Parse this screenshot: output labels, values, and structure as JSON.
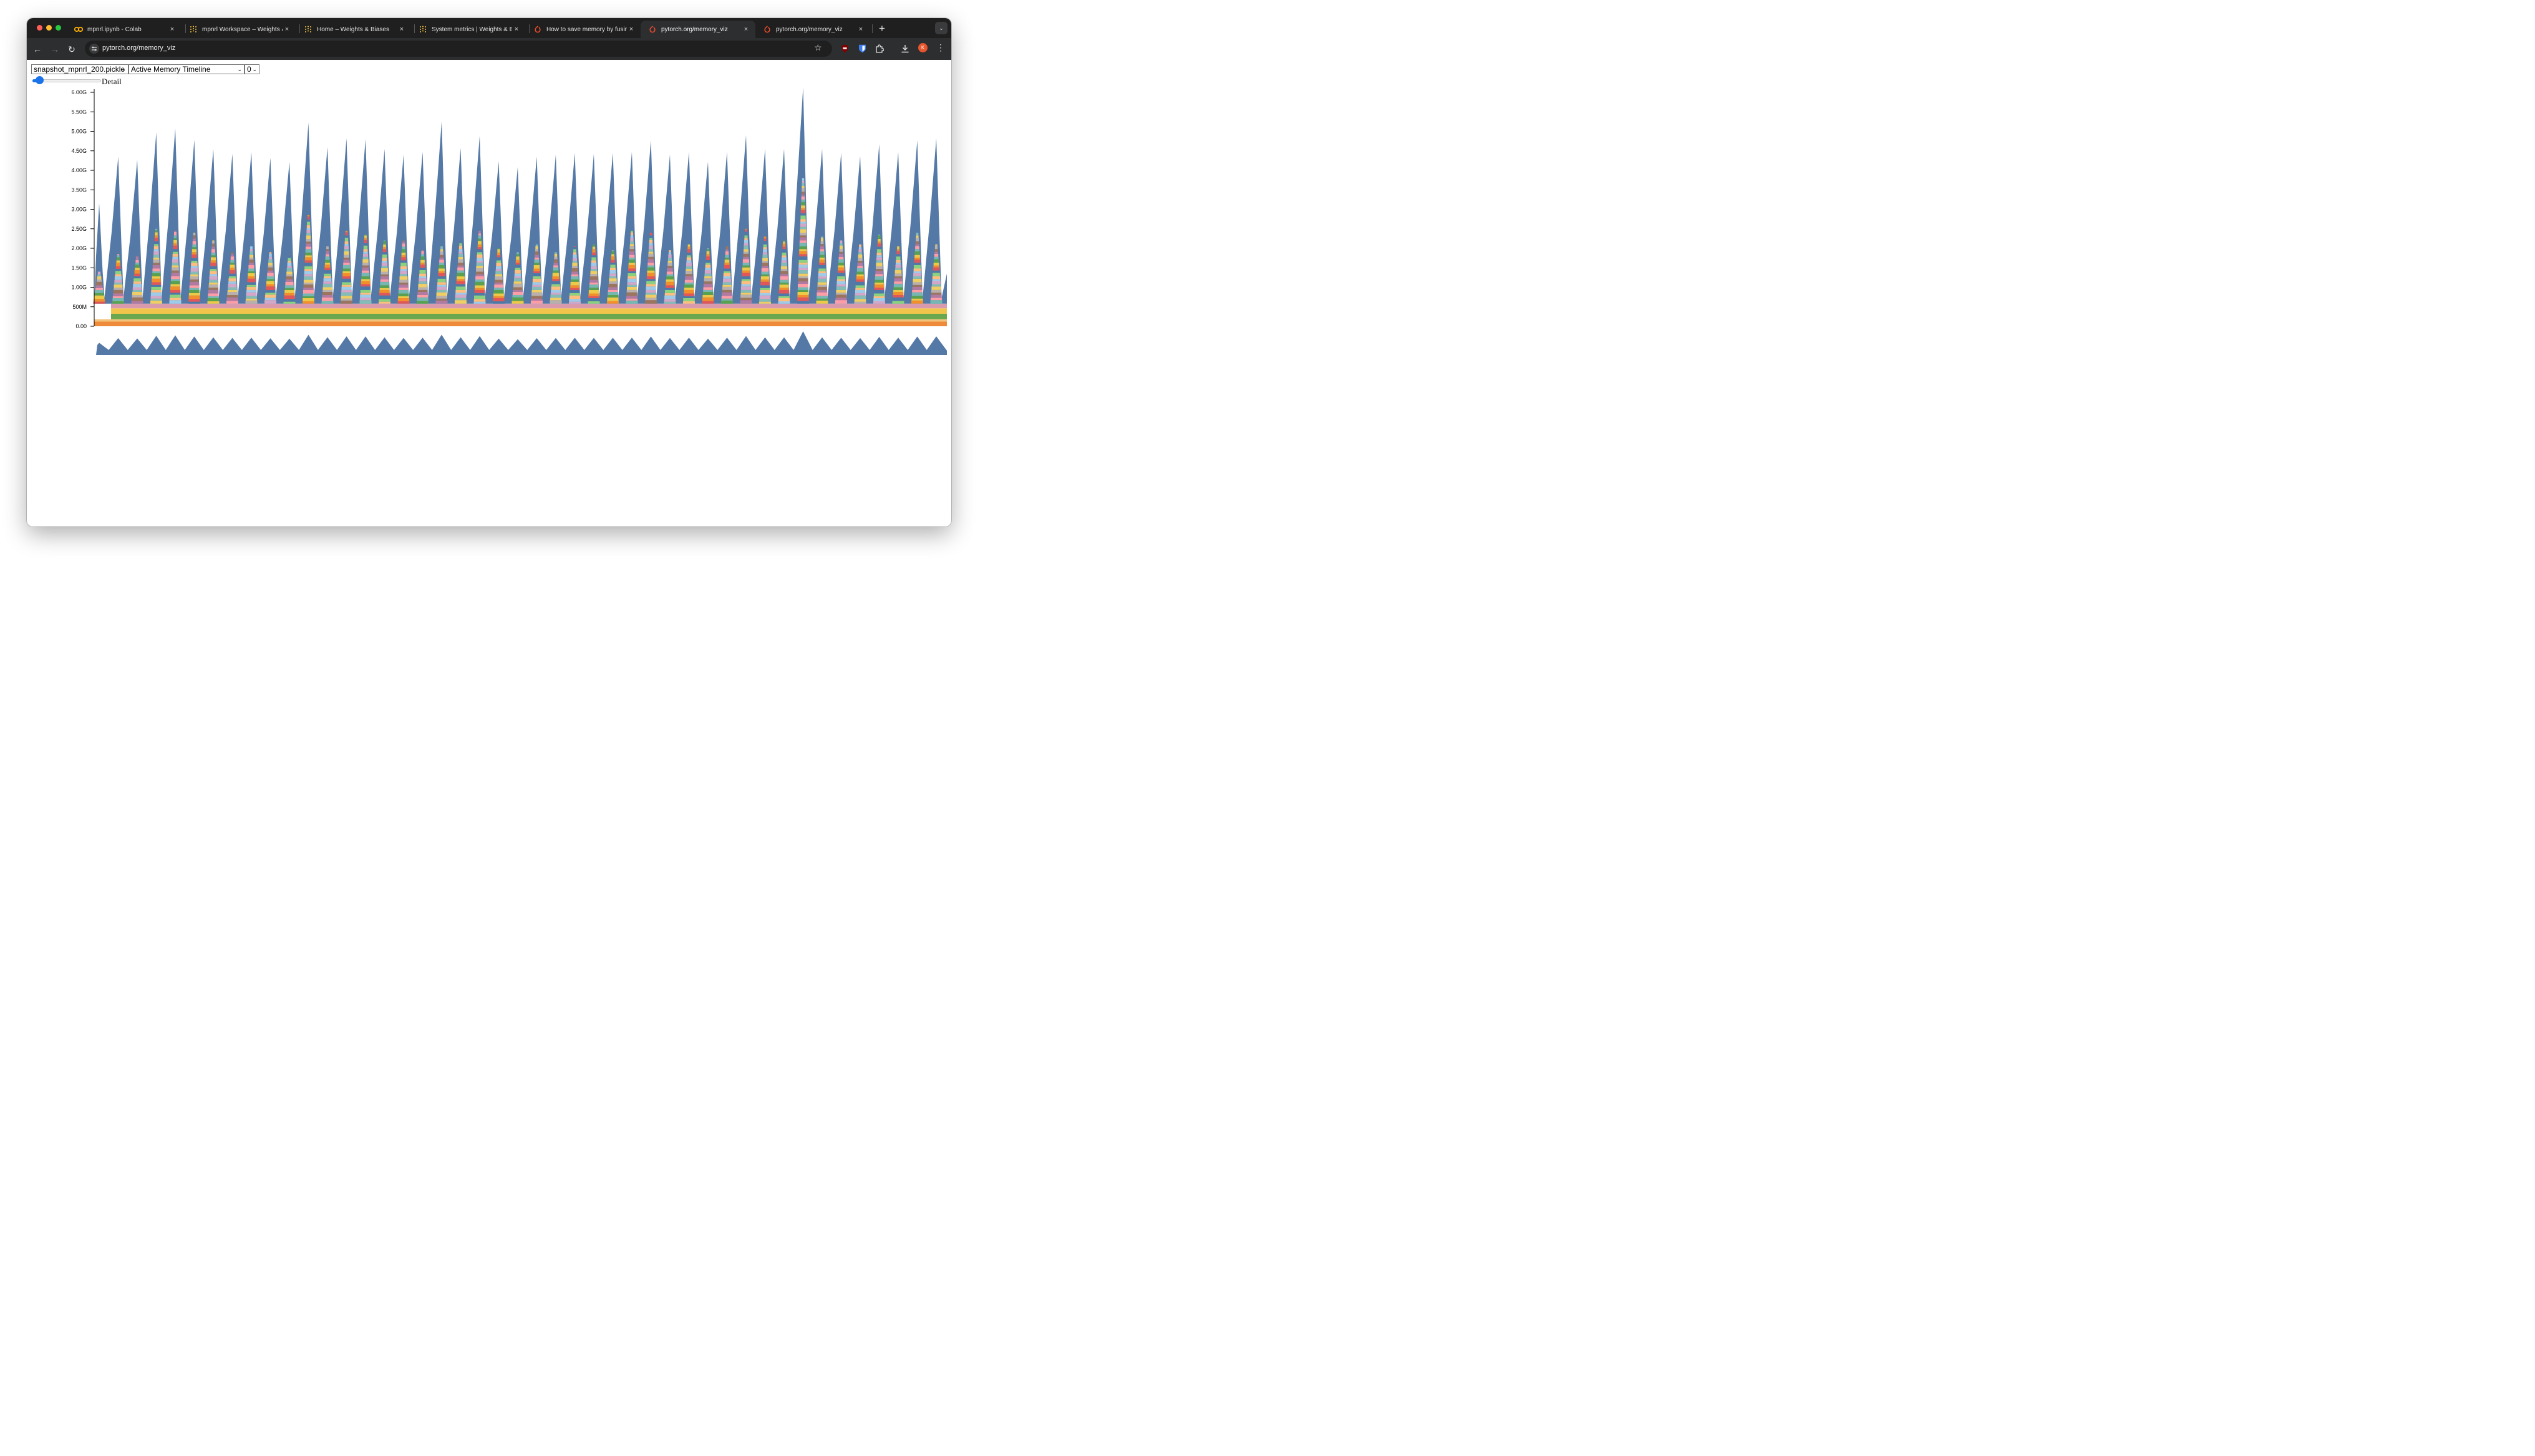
{
  "browser": {
    "tabs": [
      {
        "label": "mpnrl.ipynb - Colab",
        "icon": "colab-icon",
        "active": false
      },
      {
        "label": "mpnrl Workspace – Weights &",
        "icon": "wandb-icon",
        "active": false
      },
      {
        "label": "Home – Weights & Biases",
        "icon": "wandb-icon",
        "active": false
      },
      {
        "label": "System metrics | Weights & B",
        "icon": "wandb-icon",
        "active": false
      },
      {
        "label": "How to save memory by fusin",
        "icon": "pytorch-icon",
        "active": false
      },
      {
        "label": "pytorch.org/memory_viz",
        "icon": "pytorch-icon",
        "active": true
      },
      {
        "label": "pytorch.org/memory_viz",
        "icon": "pytorch-icon",
        "active": false
      }
    ],
    "url": "pytorch.org/memory_viz",
    "avatar_letter": "K",
    "icons": {
      "close": "×",
      "new_tab": "+",
      "tab_menu": "⌄",
      "back": "←",
      "forward": "→",
      "reload": "↻",
      "star": "☆",
      "kebab": "⋮"
    }
  },
  "page": {
    "snapshot_select": "snapshot_mpnrl_200.pickle",
    "view_select": "Active Memory Timeline",
    "device_select": "0",
    "slider_label": "Detail",
    "slider_value": 0.1
  },
  "chart_data": {
    "type": "area",
    "title": "",
    "xlabel": "",
    "ylabel": "",
    "y_unit": "bytes",
    "ylim": [
      0,
      6.15
    ],
    "y_ticks": [
      0,
      0.5,
      1.0,
      1.5,
      2.0,
      2.5,
      3.0,
      3.5,
      4.0,
      4.5,
      5.0,
      5.5,
      6.0
    ],
    "y_tick_labels": [
      "0.00",
      "500M",
      "1.00G",
      "1.50G",
      "2.00G",
      "2.50G",
      "3.00G",
      "3.50G",
      "4.00G",
      "4.50G",
      "5.00G",
      "5.50G",
      "6.00G"
    ],
    "baseline_layers": [
      {
        "from": 0.0,
        "to": 0.12,
        "color": "#ef8a3a"
      },
      {
        "from": 0.12,
        "to": 0.18,
        "color": "#f3c27a"
      },
      {
        "from": 0.18,
        "to": 0.32,
        "color": "#6aa84f"
      },
      {
        "from": 0.32,
        "to": 0.46,
        "color": "#f1c54b"
      },
      {
        "from": 0.46,
        "to": 0.58,
        "color": "#d99aae"
      }
    ],
    "peak_color": "#5479a6",
    "stripe_palette": [
      "#e15759",
      "#f28e2b",
      "#edc948",
      "#59a14f",
      "#76b7b2",
      "#ff9da7",
      "#b07aa1",
      "#9c755f",
      "#bab0ab",
      "#f1ce63",
      "#86bcb6",
      "#d4a6c8",
      "#a0cbe8",
      "#ffbe7d",
      "#8cd17d",
      "#4e79a7"
    ],
    "peaks_gb": [
      3.15,
      4.35,
      4.27,
      4.97,
      5.08,
      4.78,
      4.55,
      4.42,
      4.47,
      4.32,
      4.22,
      5.22,
      4.6,
      4.82,
      4.8,
      4.55,
      4.4,
      4.47,
      5.25,
      4.57,
      4.88,
      4.23,
      4.08,
      4.35,
      4.4,
      4.45,
      4.42,
      4.45,
      4.47,
      4.77,
      4.4,
      4.47,
      4.22,
      4.47,
      4.9,
      4.55,
      4.55,
      6.13,
      4.55,
      4.45,
      4.37,
      4.67,
      4.47,
      4.77,
      4.82
    ],
    "stack_peaks_gb": [
      1.4,
      1.85,
      1.8,
      2.5,
      2.45,
      2.4,
      2.2,
      1.9,
      2.05,
      1.9,
      1.85,
      2.85,
      2.05,
      2.45,
      2.35,
      2.2,
      2.2,
      1.95,
      2.05,
      2.2,
      2.45,
      2.0,
      1.9,
      2.1,
      1.9,
      2.05,
      2.1,
      1.95,
      2.45,
      2.4,
      1.95,
      2.1,
      2.0,
      2.05,
      2.5,
      2.3,
      2.2,
      3.8,
      2.3,
      2.2,
      2.1,
      2.35,
      2.05,
      2.4,
      2.1
    ],
    "end_value_gb": 1.35,
    "overview": {
      "type": "area",
      "color": "#5479a6"
    }
  }
}
